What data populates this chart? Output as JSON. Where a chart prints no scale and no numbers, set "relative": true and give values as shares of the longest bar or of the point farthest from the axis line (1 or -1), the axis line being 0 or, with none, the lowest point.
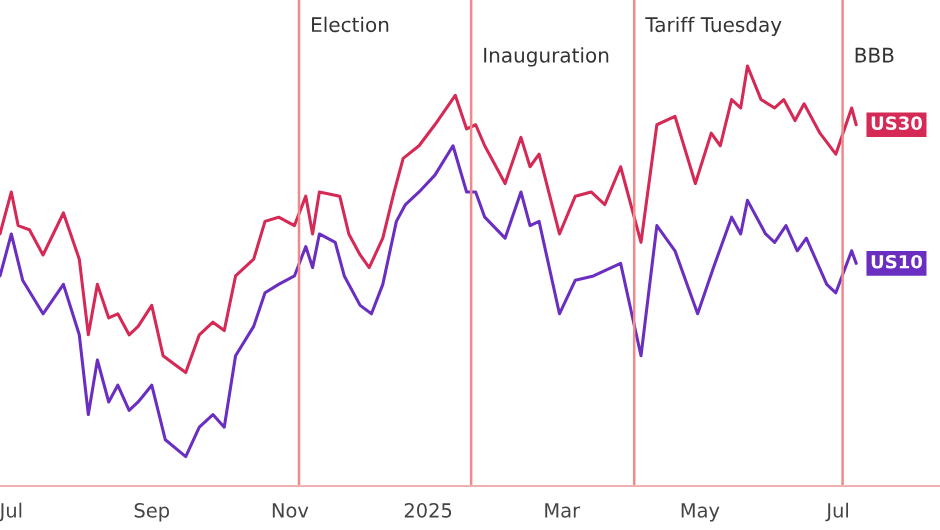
{
  "chart_data": {
    "type": "line",
    "relative": true,
    "grid": false,
    "legend": false,
    "tick_labels": "x",
    "xlim": [
      "2024-06-26",
      "2025-08-15"
    ],
    "xticks": [
      {
        "value": "2024-07-01",
        "label": "Jul"
      },
      {
        "value": "2024-09-01",
        "label": "Sep"
      },
      {
        "value": "2024-11-01",
        "label": "Nov"
      },
      {
        "value": "2025-01-01",
        "label": "2025"
      },
      {
        "value": "2025-03-01",
        "label": "Mar"
      },
      {
        "value": "2025-05-01",
        "label": "May"
      },
      {
        "value": "2025-07-01",
        "label": "Jul"
      }
    ],
    "ref_lines": [
      {
        "axis": "x",
        "value": "2024-11-05",
        "label": "Election",
        "color": "#f08a8a"
      },
      {
        "axis": "x",
        "value": "2025-01-20",
        "label": "Inauguration",
        "color": "#f08a8a"
      },
      {
        "axis": "x",
        "value": "2025-04-02",
        "label": "Tariff Tuesday",
        "color": "#f08a8a"
      },
      {
        "axis": "x",
        "value": "2025-07-03",
        "label": "BBB",
        "color": "#f08a8a"
      }
    ],
    "series": [
      {
        "name": "US30",
        "color": "#d42a55",
        "x": [
          "2024-06-26",
          "2024-07-01",
          "2024-07-04",
          "2024-07-09",
          "2024-07-15",
          "2024-07-24",
          "2024-07-31",
          "2024-08-04",
          "2024-08-08",
          "2024-08-13",
          "2024-08-17",
          "2024-08-22",
          "2024-08-26",
          "2024-09-01",
          "2024-09-06",
          "2024-09-11",
          "2024-09-16",
          "2024-09-22",
          "2024-09-28",
          "2024-10-03",
          "2024-10-08",
          "2024-10-16",
          "2024-10-21",
          "2024-10-27",
          "2024-11-03",
          "2024-11-08",
          "2024-11-11",
          "2024-11-14",
          "2024-11-23",
          "2024-11-27",
          "2024-12-02",
          "2024-12-06",
          "2024-12-12",
          "2024-12-17",
          "2024-12-21",
          "2024-12-28",
          "2025-01-04",
          "2025-01-13",
          "2025-01-18",
          "2025-01-22",
          "2025-01-26",
          "2025-02-04",
          "2025-02-11",
          "2025-02-15",
          "2025-02-19",
          "2025-02-28",
          "2025-03-07",
          "2025-03-14",
          "2025-03-20",
          "2025-03-27",
          "2025-04-05",
          "2025-04-12",
          "2025-04-20",
          "2025-04-29",
          "2025-05-06",
          "2025-05-10",
          "2025-05-15",
          "2025-05-19",
          "2025-05-22",
          "2025-05-28",
          "2025-06-03",
          "2025-06-07",
          "2025-06-12",
          "2025-06-16",
          "2025-06-23",
          "2025-06-30",
          "2025-07-07",
          "2025-07-09"
        ],
        "values": [
          0.6,
          0.7,
          0.62,
          0.61,
          0.55,
          0.65,
          0.54,
          0.36,
          0.48,
          0.4,
          0.41,
          0.36,
          0.38,
          0.43,
          0.31,
          0.29,
          0.27,
          0.36,
          0.39,
          0.37,
          0.5,
          0.54,
          0.63,
          0.64,
          0.62,
          0.69,
          0.6,
          0.7,
          0.69,
          0.6,
          0.55,
          0.52,
          0.59,
          0.7,
          0.78,
          0.81,
          0.86,
          0.93,
          0.85,
          0.86,
          0.81,
          0.72,
          0.83,
          0.76,
          0.79,
          0.6,
          0.69,
          0.7,
          0.67,
          0.76,
          0.58,
          0.86,
          0.88,
          0.72,
          0.84,
          0.81,
          0.92,
          0.9,
          1.0,
          0.92,
          0.9,
          0.92,
          0.87,
          0.91,
          0.84,
          0.79,
          0.9,
          0.86
        ]
      },
      {
        "name": "US10",
        "color": "#6a2fc0",
        "x": [
          "2024-06-26",
          "2024-07-01",
          "2024-07-06",
          "2024-07-15",
          "2024-07-24",
          "2024-07-31",
          "2024-08-04",
          "2024-08-08",
          "2024-08-13",
          "2024-08-17",
          "2024-08-22",
          "2024-08-26",
          "2024-09-01",
          "2024-09-07",
          "2024-09-16",
          "2024-09-22",
          "2024-09-28",
          "2024-10-03",
          "2024-10-08",
          "2024-10-16",
          "2024-10-21",
          "2024-10-27",
          "2024-11-03",
          "2024-11-08",
          "2024-11-11",
          "2024-11-14",
          "2024-11-21",
          "2024-11-25",
          "2024-12-02",
          "2024-12-07",
          "2024-12-12",
          "2024-12-18",
          "2024-12-22",
          "2024-12-28",
          "2025-01-04",
          "2025-01-12",
          "2025-01-18",
          "2025-01-22",
          "2025-01-26",
          "2025-02-04",
          "2025-02-11",
          "2025-02-15",
          "2025-02-19",
          "2025-02-28",
          "2025-03-07",
          "2025-03-15",
          "2025-03-27",
          "2025-04-05",
          "2025-04-12",
          "2025-04-20",
          "2025-04-30",
          "2025-05-07",
          "2025-05-15",
          "2025-05-19",
          "2025-05-22",
          "2025-05-30",
          "2025-06-03",
          "2025-06-08",
          "2025-06-13",
          "2025-06-17",
          "2025-06-26",
          "2025-06-30",
          "2025-07-07",
          "2025-07-09"
        ],
        "values": [
          0.5,
          0.6,
          0.49,
          0.41,
          0.48,
          0.36,
          0.17,
          0.3,
          0.2,
          0.24,
          0.18,
          0.2,
          0.24,
          0.11,
          0.07,
          0.14,
          0.17,
          0.14,
          0.31,
          0.38,
          0.46,
          0.48,
          0.5,
          0.57,
          0.52,
          0.6,
          0.58,
          0.5,
          0.43,
          0.41,
          0.48,
          0.63,
          0.67,
          0.7,
          0.74,
          0.81,
          0.7,
          0.7,
          0.64,
          0.59,
          0.7,
          0.62,
          0.63,
          0.41,
          0.49,
          0.5,
          0.53,
          0.31,
          0.62,
          0.56,
          0.41,
          0.52,
          0.64,
          0.6,
          0.68,
          0.6,
          0.58,
          0.62,
          0.56,
          0.59,
          0.48,
          0.46,
          0.56,
          0.53
        ]
      }
    ]
  }
}
